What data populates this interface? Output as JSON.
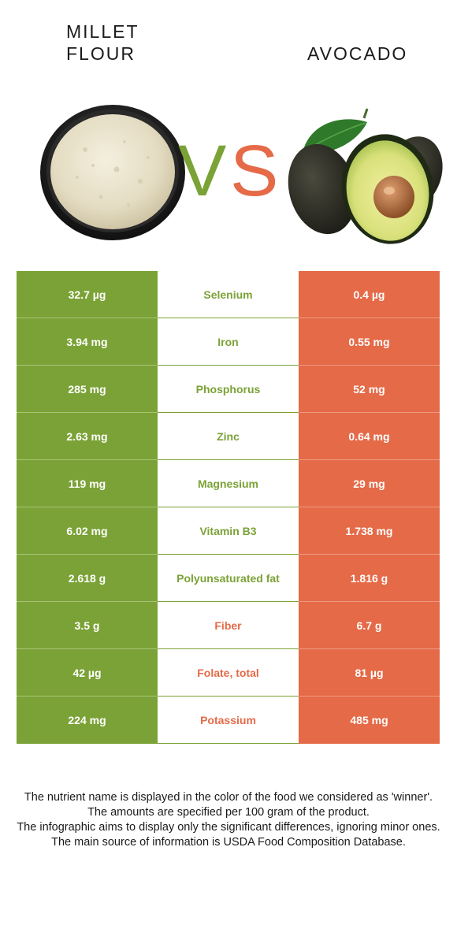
{
  "food_left": {
    "name_line1": "MILLET",
    "name_line2": "FLOUR",
    "image_icon": "millet-flour-bowl-icon"
  },
  "food_right": {
    "name": "AVOCADO",
    "image_icon": "avocado-icon"
  },
  "vs_label": {
    "v": "V",
    "s": "S"
  },
  "colors": {
    "left": "#7ba236",
    "right": "#e56a48"
  },
  "rows": [
    {
      "nutrient": "Selenium",
      "left": "32.7 µg",
      "right": "0.4 µg",
      "winner": "left"
    },
    {
      "nutrient": "Iron",
      "left": "3.94 mg",
      "right": "0.55 mg",
      "winner": "left"
    },
    {
      "nutrient": "Phosphorus",
      "left": "285 mg",
      "right": "52 mg",
      "winner": "left"
    },
    {
      "nutrient": "Zinc",
      "left": "2.63 mg",
      "right": "0.64 mg",
      "winner": "left"
    },
    {
      "nutrient": "Magnesium",
      "left": "119 mg",
      "right": "29 mg",
      "winner": "left"
    },
    {
      "nutrient": "Vitamin B3",
      "left": "6.02 mg",
      "right": "1.738 mg",
      "winner": "left"
    },
    {
      "nutrient": "Polyunsaturated fat",
      "left": "2.618 g",
      "right": "1.816 g",
      "winner": "left"
    },
    {
      "nutrient": "Fiber",
      "left": "3.5 g",
      "right": "6.7 g",
      "winner": "right"
    },
    {
      "nutrient": "Folate, total",
      "left": "42 µg",
      "right": "81 µg",
      "winner": "right"
    },
    {
      "nutrient": "Potassium",
      "left": "224 mg",
      "right": "485 mg",
      "winner": "right"
    }
  ],
  "notes": [
    "The nutrient name is displayed in the color of the food we considered as 'winner'.",
    "The amounts are specified per 100 gram of the product.",
    "The infographic aims to display only the significant differences, ignoring minor ones.",
    "The main source of information is USDA Food Composition Database."
  ]
}
